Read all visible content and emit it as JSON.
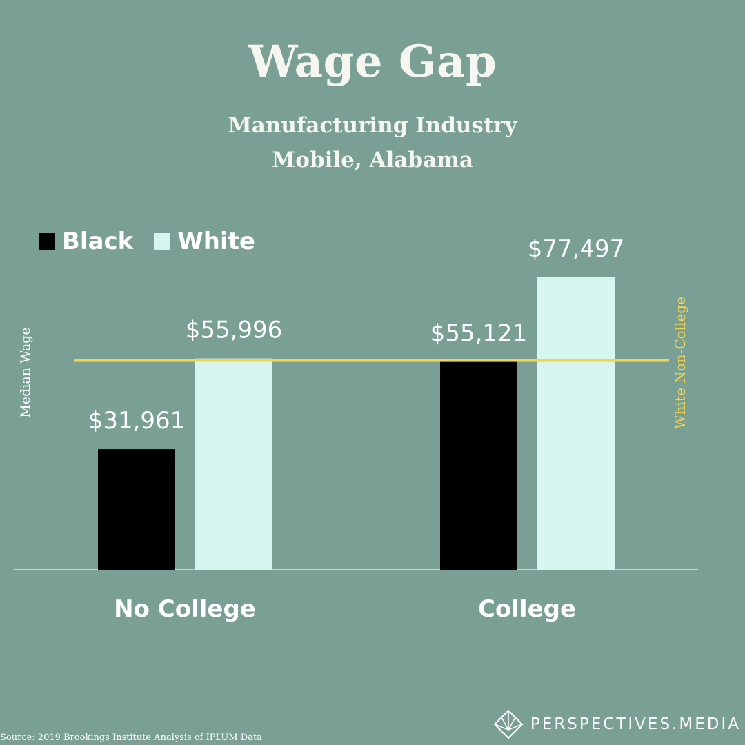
{
  "header": {
    "title": "Wage Gap",
    "subtitle_line1": "Manufacturing Industry",
    "subtitle_line2": "Mobile, Alabama"
  },
  "legend": [
    {
      "label": "Black",
      "color": "#000000"
    },
    {
      "label": "White",
      "color": "#d6f5ee"
    }
  ],
  "chart_data": {
    "type": "bar",
    "categories": [
      "No College",
      "College"
    ],
    "series": [
      {
        "name": "Black",
        "color": "#000000",
        "values": [
          31961,
          55121
        ],
        "labels": [
          "$31,961",
          "$55,121"
        ]
      },
      {
        "name": "White",
        "color": "#d6f5ee",
        "values": [
          55996,
          77497
        ],
        "labels": [
          "$55,996",
          "$77,497"
        ]
      }
    ],
    "ylabel": "Median Wage",
    "reference_line": {
      "label": "White Non-College",
      "value": 55996,
      "color": "#f2d44e"
    },
    "ylim": [
      0,
      77497
    ],
    "grid": false,
    "legend_position": "top-left"
  },
  "footer": {
    "source": "Source: 2019 Brookings Institute Analysis of IPLUM Data",
    "brand_left": "PERSPECTIVES",
    "brand_right": ".MEDIA"
  },
  "colors": {
    "background": "#7a9f94",
    "text": "#f6f6f1",
    "reference": "#f2d44e"
  },
  "icons": {
    "brand": "diamond-logo-icon"
  }
}
